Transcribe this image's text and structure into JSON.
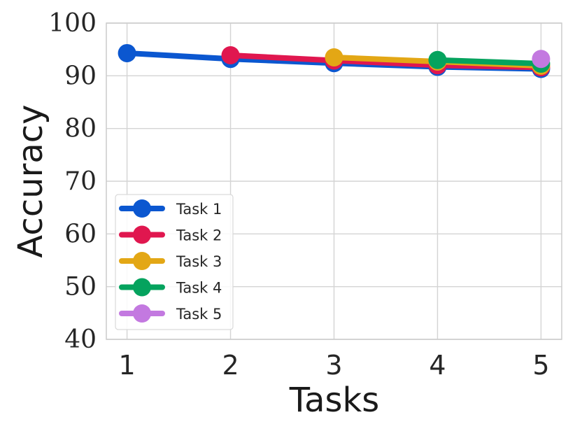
{
  "chart_data": {
    "type": "line",
    "xlabel": "Tasks",
    "ylabel": "Accuracy",
    "x": [
      1,
      2,
      3,
      4,
      5
    ],
    "xlim": [
      0.8,
      5.2
    ],
    "ylim": [
      40,
      100
    ],
    "yticks": [
      40,
      50,
      60,
      70,
      80,
      90,
      100
    ],
    "xticks": [
      1,
      2,
      3,
      4,
      5
    ],
    "grid": true,
    "legend_position": "lower-left",
    "series": [
      {
        "name": "Task 1",
        "color": "#0b57d0",
        "x": [
          1,
          2,
          3,
          4,
          5
        ],
        "values": [
          94.3,
          93.2,
          92.4,
          91.7,
          91.3
        ]
      },
      {
        "name": "Task 2",
        "color": "#e0174f",
        "x": [
          2,
          3,
          4,
          5
        ],
        "values": [
          93.9,
          92.9,
          92.0,
          91.6
        ]
      },
      {
        "name": "Task 3",
        "color": "#e3a715",
        "x": [
          3,
          4,
          5
        ],
        "values": [
          93.5,
          92.7,
          91.9
        ]
      },
      {
        "name": "Task 4",
        "color": "#05a35e",
        "x": [
          4,
          5
        ],
        "values": [
          93.0,
          92.3
        ]
      },
      {
        "name": "Task 5",
        "color": "#c379e0",
        "x": [
          5
        ],
        "values": [
          93.2
        ]
      }
    ]
  }
}
